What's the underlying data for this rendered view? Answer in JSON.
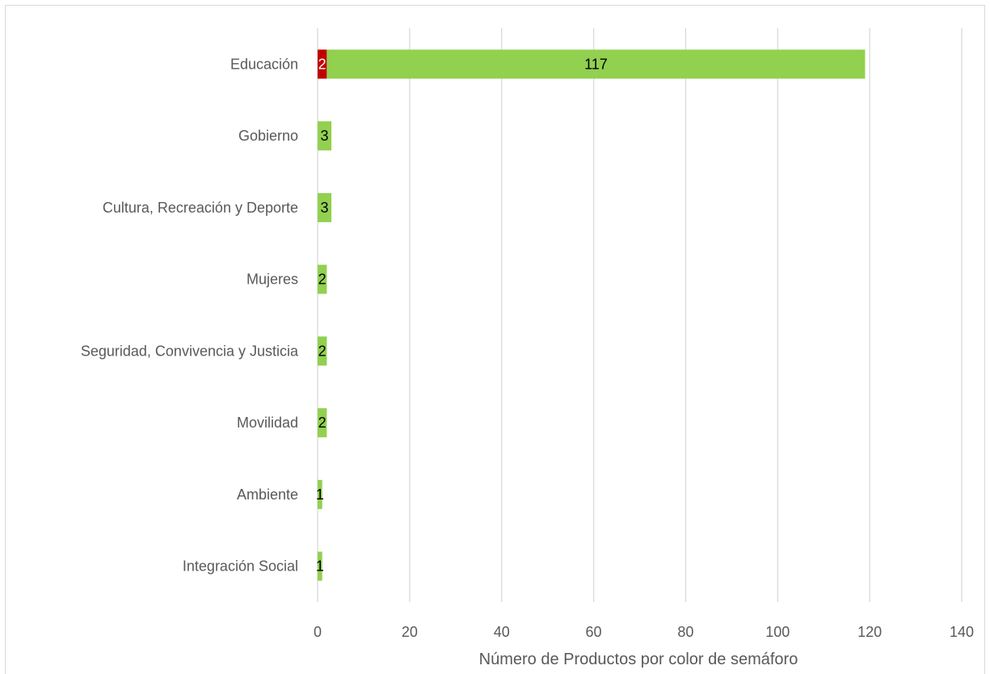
{
  "chart_data": {
    "type": "bar",
    "orientation": "horizontal",
    "stacked": true,
    "categories": [
      "Educación",
      "Gobierno",
      "Cultura, Recreación y Deporte",
      "Mujeres",
      "Seguridad, Convivencia y Justicia",
      "Movilidad",
      "Ambiente",
      "Integración Social"
    ],
    "series": [
      {
        "color": "#c00000",
        "label_color": "#ffffff",
        "values": [
          2,
          0,
          0,
          0,
          0,
          0,
          0,
          0
        ]
      },
      {
        "color": "#92d050",
        "label_color": "#000000",
        "values": [
          117,
          3,
          3,
          2,
          2,
          2,
          1,
          1
        ]
      }
    ],
    "title": "",
    "xlabel": "Número de Productos por color de semáforo",
    "ylabel": "",
    "xlim": [
      0,
      140
    ],
    "xticks": [
      0,
      20,
      40,
      60,
      80,
      100,
      120,
      140
    ],
    "grid": "vertical",
    "legend": "none"
  }
}
